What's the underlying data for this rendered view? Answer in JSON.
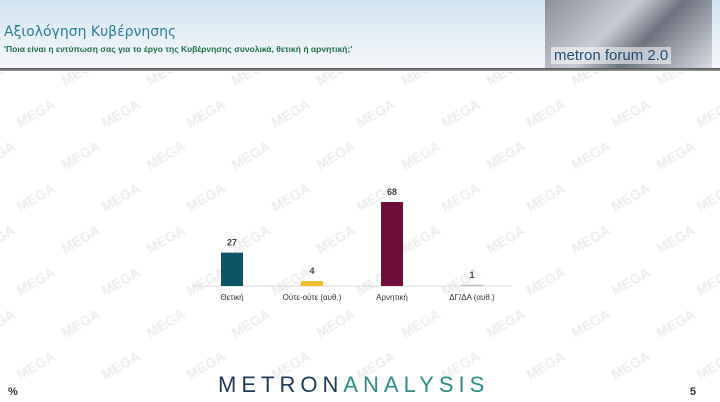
{
  "header": {
    "title": "Αξιολόγηση Κυβέρνησης",
    "subtitle": "'Ποια είναι η εντύπωση σας για το έργο της Κυβέρνησης συνολικά, θετική ή αρνητική;'",
    "badge": "metron forum 2.0"
  },
  "watermark": "MEGA",
  "chart_data": {
    "type": "bar",
    "categories": [
      "Θετική",
      "Ούτε-ούτε (αυθ.)",
      "Αρνητική",
      "ΔΓ/ΔΑ (αυθ.)"
    ],
    "values": [
      27,
      4,
      68,
      1
    ],
    "colors": [
      "#0e5468",
      "#f2b92a",
      "#6d0d3a",
      "#bbbbbb"
    ],
    "ylim": [
      0,
      70
    ],
    "grid": false
  },
  "footer": {
    "unit": "%",
    "logo_a": "METRON",
    "logo_b": "ANALYSIS",
    "page": "5"
  }
}
